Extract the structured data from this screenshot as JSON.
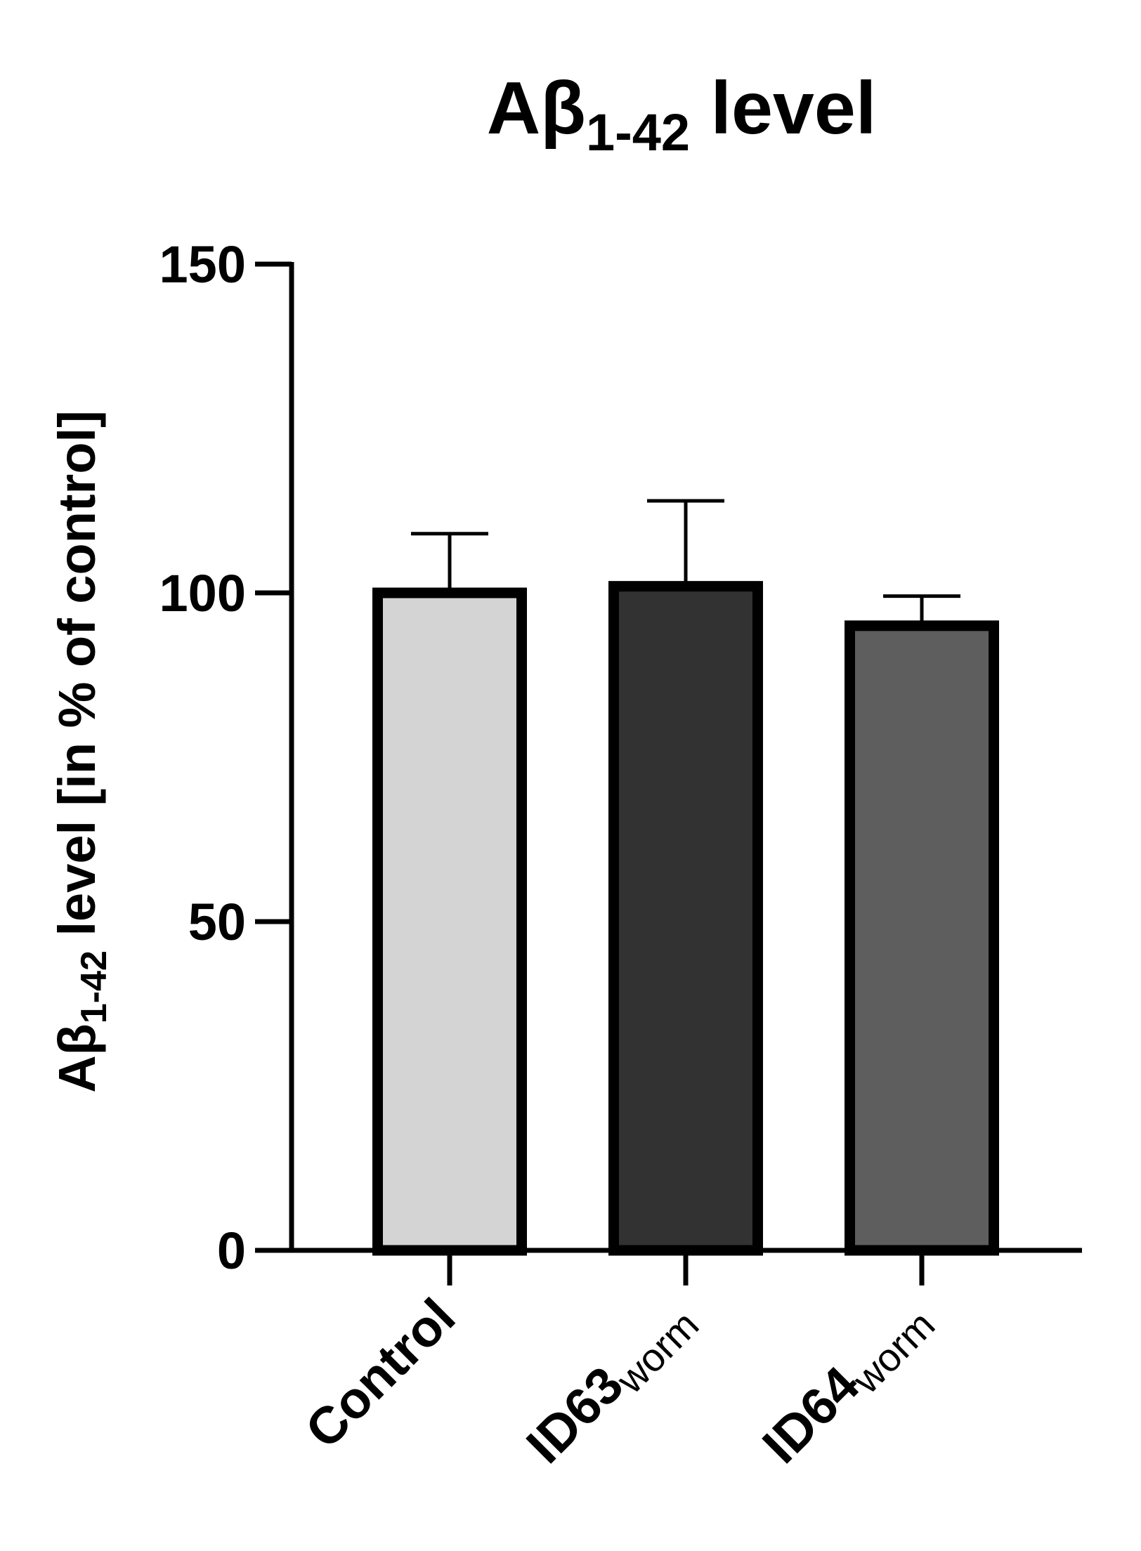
{
  "chart_data": {
    "type": "bar",
    "title": {
      "main": "Aβ",
      "sub": "1-42",
      "rest": " level"
    },
    "ylabel": {
      "main": "Aβ",
      "sub": "1-42",
      "rest": " level [in % of control]"
    },
    "xlabel": "",
    "ylim": [
      0,
      150
    ],
    "yticks": [
      "0",
      "50",
      "100",
      "150"
    ],
    "categories": [
      {
        "main": "Control",
        "sub": ""
      },
      {
        "main": "ID63",
        "sub": "worm"
      },
      {
        "main": "ID64",
        "sub": "worm"
      }
    ],
    "values": [
      100,
      101,
      95
    ],
    "error_upper": [
      9,
      13,
      4.5
    ],
    "bar_colors": [
      "#d4d4d4",
      "#323232",
      "#5e5e5e"
    ],
    "grid": false,
    "legend": "none"
  }
}
